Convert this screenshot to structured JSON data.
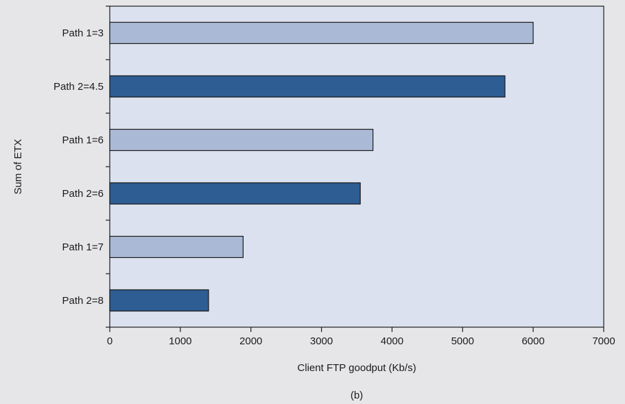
{
  "chart_data": {
    "type": "bar",
    "orientation": "horizontal",
    "categories": [
      "Path 1=3",
      "Path 2=4.5",
      "Path 1=6",
      "Path 2=6",
      "Path 1=7",
      "Path 2=8"
    ],
    "values": [
      6000,
      5600,
      3730,
      3550,
      1890,
      1400
    ],
    "bar_colors": [
      "#a9b9d6",
      "#2d5d93",
      "#a9b9d6",
      "#2d5d93",
      "#a9b9d6",
      "#2d5d93"
    ],
    "xlabel": "Client FTP goodput (Kb/s)",
    "ylabel": "Sum of ETX",
    "xlim": [
      0,
      7000
    ],
    "xticks": [
      0,
      1000,
      2000,
      3000,
      4000,
      5000,
      6000,
      7000
    ],
    "caption": "(b)",
    "grid": false,
    "legend": "none"
  },
  "colors": {
    "plot_background": "#dce1ef",
    "page_background": "#e6e6e8",
    "light_bar": "#a9b9d6",
    "dark_bar": "#2d5d93",
    "axis": "#1a1a1a"
  }
}
